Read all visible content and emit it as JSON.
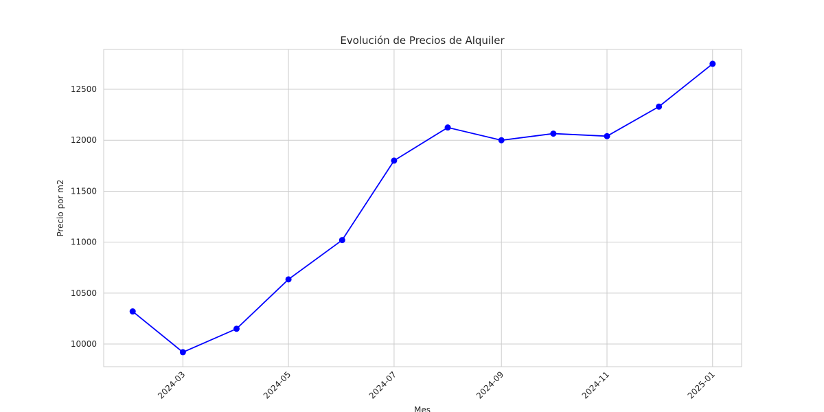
{
  "chart_data": {
    "type": "line",
    "title": "Evolución de Precios de Alquiler",
    "x_label": "Mes",
    "y_label": "Precio por m2",
    "x": [
      "2024-02",
      "2024-03",
      "2024-04",
      "2024-05",
      "2024-06",
      "2024-07",
      "2024-08",
      "2024-09",
      "2024-10",
      "2024-11",
      "2024-12",
      "2025-01"
    ],
    "series": [
      {
        "color": "#0000ff",
        "values": [
          10320,
          9920,
          10150,
          10635,
          11020,
          11800,
          12125,
          12000,
          12065,
          12040,
          12330,
          12750
        ]
      }
    ],
    "xticks": [
      "2024-03",
      "2024-05",
      "2024-07",
      "2024-09",
      "2024-11",
      "2025-01"
    ],
    "ylim": [
      9778,
      12891
    ],
    "yticks": [
      10000,
      10500,
      11000,
      11500,
      12000,
      12500
    ],
    "grid": true
  }
}
